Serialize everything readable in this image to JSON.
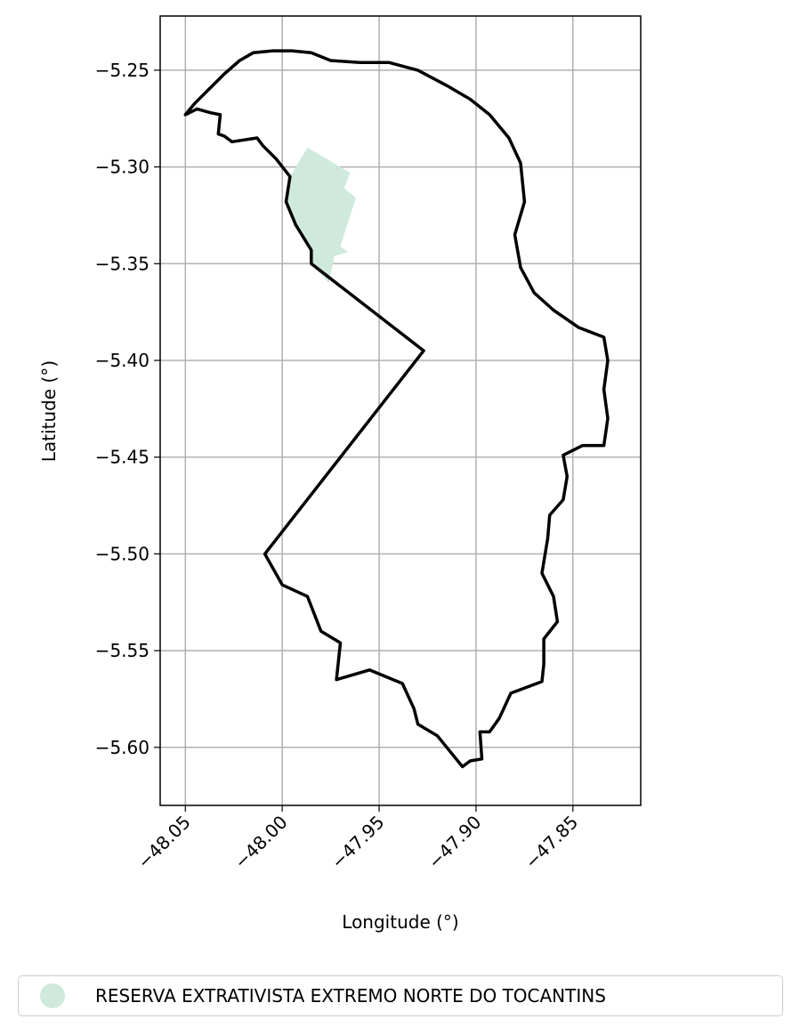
{
  "chart_data": {
    "type": "map",
    "xlabel": "Longitude (°)",
    "ylabel": "Latitude (°)",
    "xlim": [
      -48.063,
      -47.815
    ],
    "ylim": [
      -5.63,
      -5.222
    ],
    "x_ticks": [
      -48.05,
      -48.0,
      -47.95,
      -47.9,
      -47.85
    ],
    "x_tick_labels": [
      "−48.05",
      "−48.00",
      "−47.95",
      "−47.90",
      "−47.85"
    ],
    "y_ticks": [
      -5.25,
      -5.3,
      -5.35,
      -5.4,
      -5.45,
      -5.5,
      -5.55,
      -5.6
    ],
    "y_tick_labels": [
      "−5.25",
      "−5.30",
      "−5.35",
      "−5.40",
      "−5.45",
      "−5.50",
      "−5.55",
      "−5.60"
    ],
    "grid": true,
    "boundary_color": "#000000",
    "reserve_color": "#cfeadd",
    "boundary": [
      [
        -48.05,
        -5.273
      ],
      [
        -48.045,
        -5.267
      ],
      [
        -48.038,
        -5.26
      ],
      [
        -48.03,
        -5.252
      ],
      [
        -48.022,
        -5.245
      ],
      [
        -48.015,
        -5.241
      ],
      [
        -48.005,
        -5.24
      ],
      [
        -47.995,
        -5.24
      ],
      [
        -47.985,
        -5.241
      ],
      [
        -47.975,
        -5.245
      ],
      [
        -47.96,
        -5.246
      ],
      [
        -47.945,
        -5.246
      ],
      [
        -47.93,
        -5.25
      ],
      [
        -47.915,
        -5.258
      ],
      [
        -47.903,
        -5.265
      ],
      [
        -47.893,
        -5.273
      ],
      [
        -47.883,
        -5.285
      ],
      [
        -47.877,
        -5.298
      ],
      [
        -47.875,
        -5.318
      ],
      [
        -47.88,
        -5.335
      ],
      [
        -47.877,
        -5.352
      ],
      [
        -47.87,
        -5.365
      ],
      [
        -47.86,
        -5.374
      ],
      [
        -47.847,
        -5.383
      ],
      [
        -47.834,
        -5.388
      ],
      [
        -47.832,
        -5.4
      ],
      [
        -47.834,
        -5.415
      ],
      [
        -47.832,
        -5.43
      ],
      [
        -47.834,
        -5.444
      ],
      [
        -47.845,
        -5.444
      ],
      [
        -47.855,
        -5.449
      ],
      [
        -47.853,
        -5.46
      ],
      [
        -47.855,
        -5.472
      ],
      [
        -47.862,
        -5.48
      ],
      [
        -47.863,
        -5.492
      ],
      [
        -47.866,
        -5.51
      ],
      [
        -47.86,
        -5.522
      ],
      [
        -47.858,
        -5.535
      ],
      [
        -47.865,
        -5.544
      ],
      [
        -47.865,
        -5.557
      ],
      [
        -47.866,
        -5.566
      ],
      [
        -47.882,
        -5.572
      ],
      [
        -47.888,
        -5.585
      ],
      [
        -47.893,
        -5.592
      ],
      [
        -47.898,
        -5.592
      ],
      [
        -47.897,
        -5.606
      ],
      [
        -47.903,
        -5.607
      ],
      [
        -47.907,
        -5.61
      ],
      [
        -47.92,
        -5.594
      ],
      [
        -47.93,
        -5.588
      ],
      [
        -47.932,
        -5.58
      ],
      [
        -47.938,
        -5.567
      ],
      [
        -47.955,
        -5.56
      ],
      [
        -47.972,
        -5.565
      ],
      [
        -47.97,
        -5.546
      ],
      [
        -47.98,
        -5.54
      ],
      [
        -47.987,
        -5.522
      ],
      [
        -48.0,
        -5.516
      ],
      [
        -48.009,
        -5.5
      ],
      [
        -47.927,
        -5.395
      ],
      [
        -47.985,
        -5.35
      ],
      [
        -47.985,
        -5.343
      ],
      [
        -47.993,
        -5.33
      ],
      [
        -47.998,
        -5.318
      ],
      [
        -47.996,
        -5.305
      ],
      [
        -48.003,
        -5.296
      ],
      [
        -48.01,
        -5.289
      ],
      [
        -48.013,
        -5.285
      ],
      [
        -48.026,
        -5.287
      ],
      [
        -48.03,
        -5.284
      ],
      [
        -48.033,
        -5.283
      ],
      [
        -48.032,
        -5.273
      ],
      [
        -48.037,
        -5.272
      ],
      [
        -48.044,
        -5.27
      ],
      [
        -48.05,
        -5.273
      ]
    ],
    "reserve": {
      "name": "RESERVA EXTRATIVISTA EXTREMO NORTE DO TOCANTINS",
      "polygon": [
        [
          -47.987,
          -5.29
        ],
        [
          -47.965,
          -5.303
        ],
        [
          -47.968,
          -5.311
        ],
        [
          -47.962,
          -5.316
        ],
        [
          -47.97,
          -5.341
        ],
        [
          -47.966,
          -5.344
        ],
        [
          -47.973,
          -5.346
        ],
        [
          -47.976,
          -5.36
        ],
        [
          -47.985,
          -5.35
        ],
        [
          -47.985,
          -5.343
        ],
        [
          -47.993,
          -5.33
        ],
        [
          -47.998,
          -5.318
        ],
        [
          -47.996,
          -5.305
        ]
      ]
    }
  },
  "legend": {
    "label": "RESERVA EXTRATIVISTA EXTREMO NORTE DO TOCANTINS",
    "marker_color": "#cfeadd"
  }
}
